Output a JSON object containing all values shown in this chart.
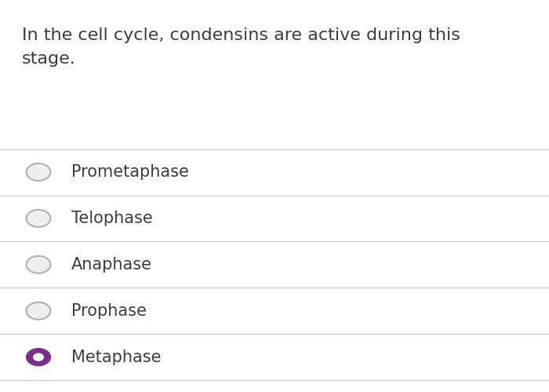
{
  "question": "In the cell cycle, condensins are active during this\nstage.",
  "options": [
    "Prometaphase",
    "Telophase",
    "Anaphase",
    "Prophase",
    "Metaphase"
  ],
  "correct_index": 4,
  "background_color": "#ffffff",
  "question_color": "#3d3d3d",
  "option_color": "#3d3d3d",
  "divider_color": "#cccccc",
  "radio_empty_edge_color": "#b0b0b0",
  "radio_empty_fill_color": "#efefef",
  "radio_filled_color": "#7b2d8b",
  "question_fontsize": 16,
  "option_fontsize": 15
}
